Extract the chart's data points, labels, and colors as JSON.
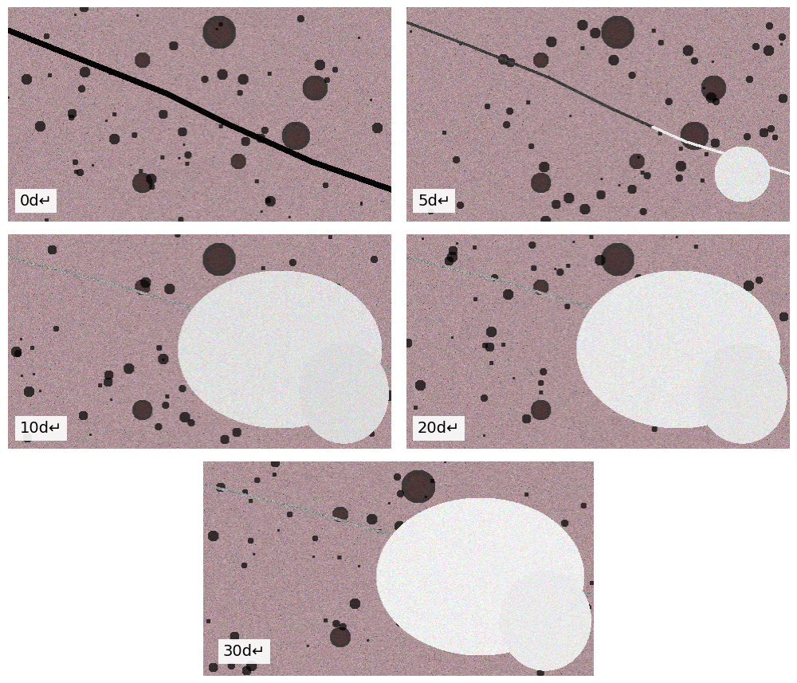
{
  "labels": [
    "0d↵",
    "5d↵",
    "10d↵",
    "20d↵",
    "30d↵"
  ],
  "layout": [
    [
      0,
      1
    ],
    [
      2,
      3
    ],
    [
      4
    ]
  ],
  "figsize": [
    10.0,
    8.57
  ],
  "bg_color": "#ffffff",
  "label_fontsize": 14,
  "label_color": "#000000",
  "panel_bg": "#c8bcc8",
  "gap_color": "#d0d0d0",
  "title_color": "#000000",
  "seed": 42
}
